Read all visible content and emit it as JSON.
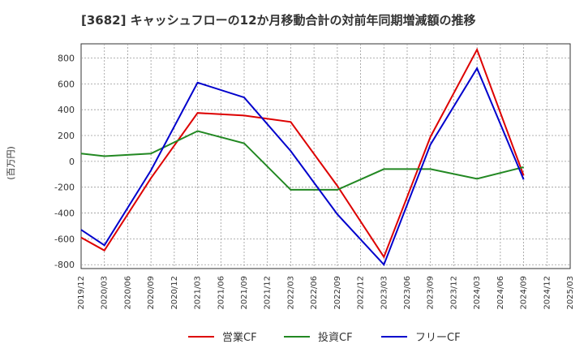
{
  "chart_data": {
    "type": "line",
    "title": "[3682]  キャッシュフローの12か月移動合計の対前年同期増減額の推移",
    "xlabel": "",
    "ylabel": "(百万円)",
    "ylim": [
      -830,
      910
    ],
    "yticks": [
      800,
      600,
      400,
      200,
      0,
      -200,
      -400,
      -600,
      -800
    ],
    "x": [
      "2019/12",
      "2020/03",
      "2020/06",
      "2020/09",
      "2020/12",
      "2021/03",
      "2021/06",
      "2021/09",
      "2021/12",
      "2022/03",
      "2022/06",
      "2022/09",
      "2022/12",
      "2023/03",
      "2023/06",
      "2023/09",
      "2023/12",
      "2024/03",
      "2024/06",
      "2024/09",
      "2024/12",
      "2025/03"
    ],
    "grid": true,
    "legend_position": "bottom",
    "series": [
      {
        "name": "営業CF",
        "color": "#dd0000",
        "values": [
          -590,
          -690,
          null,
          -130,
          null,
          375,
          null,
          355,
          null,
          305,
          null,
          -190,
          null,
          -740,
          null,
          190,
          null,
          865,
          null,
          -110,
          null,
          null
        ]
      },
      {
        "name": "投資CF",
        "color": "#228822",
        "values": [
          60,
          40,
          null,
          60,
          null,
          235,
          null,
          140,
          null,
          -220,
          null,
          -220,
          null,
          -60,
          null,
          -60,
          null,
          -135,
          null,
          -45,
          null,
          null
        ]
      },
      {
        "name": "フリーCF",
        "color": "#0000cc",
        "values": [
          -530,
          -650,
          null,
          -70,
          null,
          610,
          null,
          495,
          null,
          80,
          null,
          -410,
          null,
          -800,
          null,
          130,
          null,
          720,
          null,
          -140,
          null,
          null
        ]
      }
    ]
  }
}
